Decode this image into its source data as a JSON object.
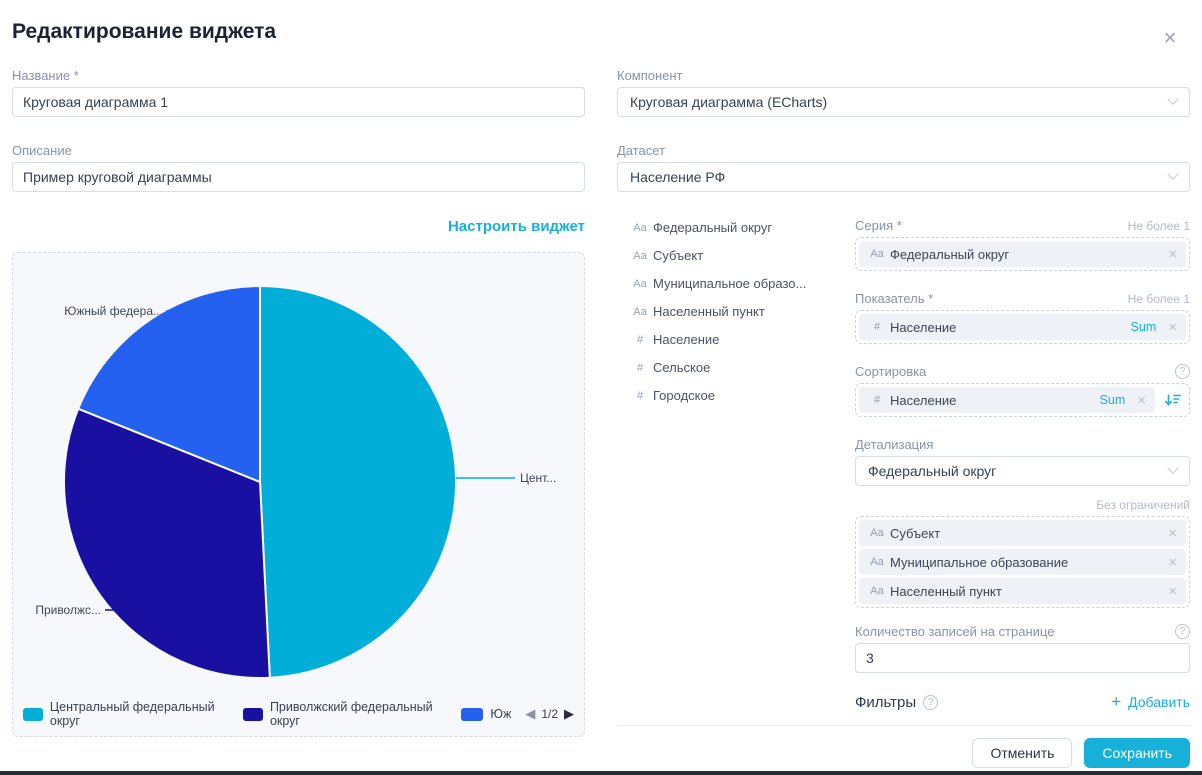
{
  "modal": {
    "title": "Редактирование виджета"
  },
  "accent_color": "#16b0d9",
  "left": {
    "name_label": "Название *",
    "name_value": "Круговая диаграмма 1",
    "desc_label": "Описание",
    "desc_value": "Пример круговой диаграммы",
    "configure_link": "Настроить виджет"
  },
  "right": {
    "component_label": "Компонент",
    "component_value": "Круговая диаграмма (ECharts)",
    "dataset_label": "Датасет",
    "dataset_value": "Население РФ"
  },
  "fields": {
    "items": [
      {
        "prefix": "Аа",
        "label": "Федеральный округ"
      },
      {
        "prefix": "Аа",
        "label": "Субъект"
      },
      {
        "prefix": "Аа",
        "label": "Муниципальное образо..."
      },
      {
        "prefix": "Аа",
        "label": "Населенный пункт"
      },
      {
        "prefix": "#",
        "label": "Население"
      },
      {
        "prefix": "#",
        "label": "Сельское"
      },
      {
        "prefix": "#",
        "label": "Городское"
      }
    ]
  },
  "config": {
    "series": {
      "label": "Серия *",
      "hint": "Не более 1",
      "chip": {
        "prefix": "Аа",
        "label": "Федеральный округ"
      }
    },
    "metric": {
      "label": "Показатель *",
      "hint": "Не более 1",
      "chip": {
        "prefix": "#",
        "label": "Население",
        "agg": "Sum"
      }
    },
    "sort": {
      "label": "Сортировка",
      "chip": {
        "prefix": "#",
        "label": "Население",
        "agg": "Sum"
      }
    },
    "drilldown": {
      "label": "Детализация",
      "value": "Федеральный округ",
      "hint": "Без ограничений",
      "chips": [
        {
          "prefix": "Аа",
          "label": "Субъект"
        },
        {
          "prefix": "Аа",
          "label": "Муниципальное образование"
        },
        {
          "prefix": "Аа",
          "label": "Населенный пункт"
        }
      ]
    },
    "page_size": {
      "label": "Количество записей на странице",
      "value": "3"
    },
    "filters": {
      "label": "Фильтры",
      "add_label": "Добавить"
    }
  },
  "footer": {
    "cancel_label": "Отменить",
    "save_label": "Сохранить"
  },
  "chart_data": {
    "type": "pie",
    "series_field": "Федеральный округ",
    "metric": "Население (Sum)",
    "start_angle_deg": 0,
    "clockwise": true,
    "slices": [
      {
        "label": "Центральный федеральный округ",
        "share_pct": 49.2,
        "color": "#00aed8",
        "callout": "Цент..."
      },
      {
        "label": "Приволжский федеральный округ",
        "share_pct": 31.9,
        "color": "#1910a2",
        "callout": "Приволжс..."
      },
      {
        "label": "Южный федеральный округ",
        "share_pct": 18.9,
        "color": "#2461f0",
        "callout": "Южный федера..."
      }
    ],
    "legend": {
      "position": "bottom",
      "items": [
        "Центральный федеральный округ",
        "Приволжский федеральный округ",
        "Юж"
      ],
      "page": "1/2"
    }
  }
}
